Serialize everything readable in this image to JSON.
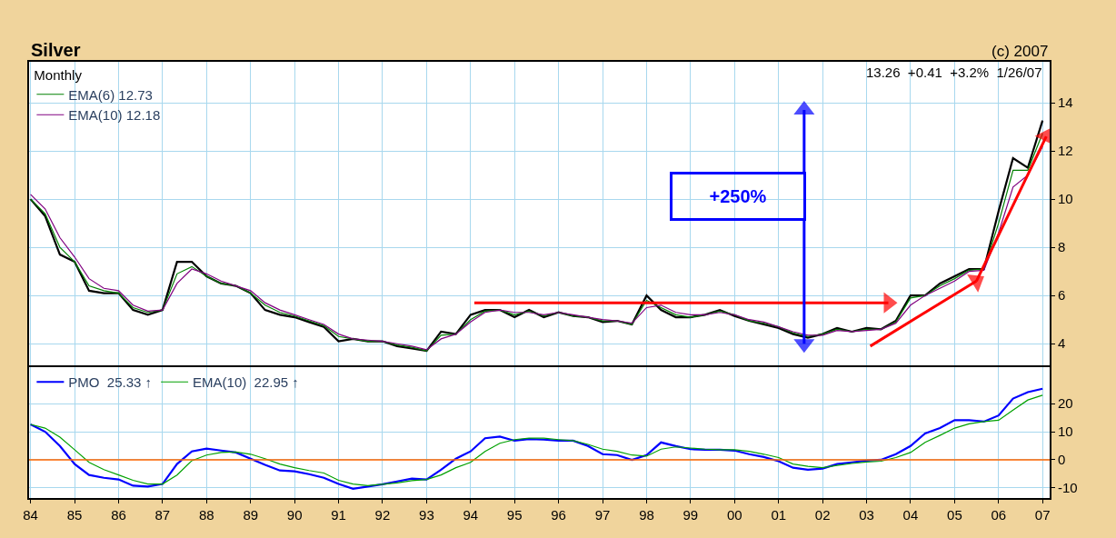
{
  "chart_data": [
    {
      "type": "line",
      "title": "Silver",
      "legend_title": "Monthly",
      "annotations": [
        "(c) 2007",
        "13.26  +0.41  +3.2%  1/26/07",
        "+250%"
      ],
      "x": [
        "1984-01",
        "1984-05",
        "1984-09",
        "1985-01",
        "1985-05",
        "1985-09",
        "1986-01",
        "1986-05",
        "1986-09",
        "1987-01",
        "1987-05",
        "1987-09",
        "1988-01",
        "1988-05",
        "1988-09",
        "1989-01",
        "1989-05",
        "1989-09",
        "1990-01",
        "1990-05",
        "1990-09",
        "1991-01",
        "1991-05",
        "1991-09",
        "1992-01",
        "1992-05",
        "1992-09",
        "1993-01",
        "1993-05",
        "1993-09",
        "1994-01",
        "1994-05",
        "1994-09",
        "1995-01",
        "1995-05",
        "1995-09",
        "1996-01",
        "1996-05",
        "1996-09",
        "1997-01",
        "1997-05",
        "1997-09",
        "1998-01",
        "1998-05",
        "1998-09",
        "1999-01",
        "1999-05",
        "1999-09",
        "2000-01",
        "2000-05",
        "2000-09",
        "2001-01",
        "2001-05",
        "2001-09",
        "2002-01",
        "2002-05",
        "2002-09",
        "2003-01",
        "2003-05",
        "2003-09",
        "2004-01",
        "2004-05",
        "2004-09",
        "2005-01",
        "2005-05",
        "2005-09",
        "2006-01",
        "2006-05",
        "2006-09",
        "2007-01"
      ],
      "series": [
        {
          "color": "#000000",
          "values": [
            10.0,
            9.3,
            7.7,
            7.4,
            6.2,
            6.1,
            6.1,
            5.4,
            5.2,
            5.4,
            7.4,
            7.4,
            6.8,
            6.5,
            6.4,
            6.1,
            5.4,
            5.2,
            5.1,
            4.9,
            4.7,
            4.1,
            4.2,
            4.1,
            4.1,
            3.9,
            3.8,
            3.7,
            4.5,
            4.4,
            5.2,
            5.4,
            5.4,
            5.1,
            5.4,
            5.1,
            5.3,
            5.15,
            5.1,
            4.9,
            4.95,
            4.8,
            6.0,
            5.4,
            5.1,
            5.1,
            5.2,
            5.4,
            5.15,
            4.95,
            4.8,
            4.65,
            4.4,
            4.25,
            4.4,
            4.65,
            4.5,
            4.65,
            4.6,
            4.95,
            6.0,
            6.0,
            6.5,
            6.8,
            7.1,
            7.1,
            9.5,
            11.7,
            11.3,
            13.26
          ]
        },
        {
          "name": "EMA(6) 12.73",
          "color": "#008000",
          "values": [
            10.0,
            9.4,
            8.0,
            7.4,
            6.4,
            6.2,
            6.1,
            5.5,
            5.3,
            5.4,
            6.9,
            7.2,
            6.8,
            6.5,
            6.4,
            6.1,
            5.6,
            5.3,
            5.15,
            4.95,
            4.75,
            4.3,
            4.2,
            4.1,
            4.1,
            3.95,
            3.85,
            3.7,
            4.35,
            4.4,
            5.0,
            5.35,
            5.4,
            5.2,
            5.35,
            5.15,
            5.3,
            5.15,
            5.1,
            4.95,
            4.95,
            4.8,
            5.8,
            5.5,
            5.2,
            5.1,
            5.2,
            5.35,
            5.2,
            4.95,
            4.85,
            4.7,
            4.45,
            4.3,
            4.4,
            4.6,
            4.5,
            4.6,
            4.6,
            4.9,
            5.9,
            6.0,
            6.4,
            6.7,
            7.05,
            7.1,
            9.0,
            11.2,
            11.2,
            12.73
          ]
        },
        {
          "name": "EMA(10) 12.18",
          "color": "#800080",
          "values": [
            10.2,
            9.6,
            8.4,
            7.6,
            6.7,
            6.3,
            6.2,
            5.6,
            5.35,
            5.4,
            6.5,
            7.1,
            6.9,
            6.6,
            6.4,
            6.2,
            5.7,
            5.4,
            5.2,
            5.0,
            4.8,
            4.4,
            4.2,
            4.15,
            4.1,
            4.0,
            3.9,
            3.75,
            4.2,
            4.4,
            4.9,
            5.3,
            5.4,
            5.3,
            5.3,
            5.2,
            5.3,
            5.2,
            5.1,
            5.0,
            4.95,
            4.85,
            5.5,
            5.6,
            5.3,
            5.2,
            5.2,
            5.3,
            5.2,
            5.0,
            4.9,
            4.7,
            4.5,
            4.35,
            4.35,
            4.55,
            4.5,
            4.55,
            4.6,
            4.85,
            5.6,
            6.0,
            6.3,
            6.6,
            7.0,
            7.05,
            8.6,
            10.5,
            11.0,
            12.18
          ]
        },
        {
          "color": "#ff0000",
          "marker": "triangle",
          "x": [
            "1994-02",
            "2003-07"
          ],
          "values": [
            5.7,
            5.7
          ]
        },
        {
          "color": "#ff0000",
          "marker": "triangle",
          "x": [
            "2003-02",
            "2005-07"
          ],
          "values": [
            3.9,
            6.6
          ]
        },
        {
          "color": "#ff0000",
          "marker": "triangle",
          "x": [
            "2005-07",
            "2007-02"
          ],
          "values": [
            6.6,
            12.6
          ]
        },
        {
          "color": "#0000ff",
          "marker": "triangle",
          "x": [
            "2001-08",
            "2001-08"
          ],
          "values": [
            11.1,
            13.7
          ]
        },
        {
          "color": "#0000ff",
          "marker": "triangle",
          "x": [
            "2001-08",
            "2001-08"
          ],
          "values": [
            9.2,
            4.0
          ]
        }
      ],
      "xlim": [
        "1983-12-20",
        "2007-03-01"
      ],
      "xticks": [
        {
          "value": "1984-01",
          "label": null
        },
        {
          "value": "1985-01",
          "label": null
        },
        {
          "value": "1986-01",
          "label": null
        },
        {
          "value": "1987-01",
          "label": null
        },
        {
          "value": "1988-01",
          "label": null
        },
        {
          "value": "1989-01",
          "label": null
        },
        {
          "value": "1990-01",
          "label": null
        },
        {
          "value": "1991-01",
          "label": null
        },
        {
          "value": "1992-01",
          "label": null
        },
        {
          "value": "1993-01",
          "label": null
        },
        {
          "value": "1994-01",
          "label": null
        },
        {
          "value": "1995-01",
          "label": null
        },
        {
          "value": "1996-01",
          "label": null
        },
        {
          "value": "1997-01",
          "label": null
        },
        {
          "value": "1998-01",
          "label": null
        },
        {
          "value": "1999-01",
          "label": null
        },
        {
          "value": "2000-01",
          "label": null
        },
        {
          "value": "2001-01",
          "label": null
        },
        {
          "value": "2002-01",
          "label": null
        },
        {
          "value": "2003-01",
          "label": null
        },
        {
          "value": "2004-01",
          "label": null
        },
        {
          "value": "2005-01",
          "label": null
        },
        {
          "value": "2006-01",
          "label": null
        },
        {
          "value": "2007-01",
          "label": null
        }
      ],
      "ylim": [
        3.1,
        15.7
      ],
      "yticks": [
        4,
        6,
        8,
        10,
        12,
        14
      ],
      "tick_labels": "y",
      "grid": true,
      "legend": "top left"
    },
    {
      "type": "line",
      "x": [
        "1984-01",
        "1984-05",
        "1984-09",
        "1985-01",
        "1985-05",
        "1985-09",
        "1986-01",
        "1986-05",
        "1986-09",
        "1987-01",
        "1987-05",
        "1987-09",
        "1988-01",
        "1988-05",
        "1988-09",
        "1989-01",
        "1989-05",
        "1989-09",
        "1990-01",
        "1990-05",
        "1990-09",
        "1991-01",
        "1991-05",
        "1991-09",
        "1992-01",
        "1992-05",
        "1992-09",
        "1993-01",
        "1993-05",
        "1993-09",
        "1994-01",
        "1994-05",
        "1994-09",
        "1995-01",
        "1995-05",
        "1995-09",
        "1996-01",
        "1996-05",
        "1996-09",
        "1997-01",
        "1997-05",
        "1997-09",
        "1998-01",
        "1998-05",
        "1998-09",
        "1999-01",
        "1999-05",
        "1999-09",
        "2000-01",
        "2000-05",
        "2000-09",
        "2001-01",
        "2001-05",
        "2001-09",
        "2002-01",
        "2002-05",
        "2002-09",
        "2003-01",
        "2003-05",
        "2003-09",
        "2004-01",
        "2004-05",
        "2004-09",
        "2005-01",
        "2005-05",
        "2005-09",
        "2006-01",
        "2006-05",
        "2006-09",
        "2007-01"
      ],
      "series": [
        {
          "name": "PMO  25.33 ↑",
          "color": "#0000ff",
          "values": [
            12.6,
            10,
            4.9,
            -1.5,
            -5.4,
            -6.4,
            -7,
            -9.2,
            -9.5,
            -8.6,
            -1.5,
            3,
            4,
            3.3,
            2.6,
            0.4,
            -1.8,
            -3.8,
            -4.1,
            -5.1,
            -6.4,
            -8.6,
            -10.3,
            -9.5,
            -8.7,
            -7.7,
            -6.7,
            -7,
            -3.5,
            0.4,
            3,
            7.7,
            8.3,
            6.8,
            7.4,
            7.2,
            6.8,
            6.8,
            4.9,
            2,
            1.7,
            0,
            1.7,
            6.2,
            4.9,
            3.8,
            3.6,
            3.6,
            3.3,
            2,
            1,
            -0.5,
            -2.8,
            -3.5,
            -3.1,
            -1.5,
            -0.9,
            -0.3,
            0,
            2,
            4.9,
            9.4,
            11.3,
            14.1,
            14.1,
            13.6,
            15.8,
            21.8,
            24.1,
            25.3
          ]
        },
        {
          "name": "EMA(10)  22.95 ↑",
          "color": "#00a000",
          "values": [
            12.6,
            11.3,
            8.1,
            3.6,
            -0.9,
            -3.5,
            -5.4,
            -7.3,
            -8.6,
            -8.6,
            -5.4,
            -0.3,
            1.7,
            2.6,
            2.8,
            2,
            0.4,
            -1.5,
            -2.8,
            -3.8,
            -4.7,
            -7.3,
            -8.6,
            -9.2,
            -8.7,
            -8.2,
            -7.4,
            -7,
            -5.4,
            -2.8,
            -0.9,
            3,
            5.9,
            7.2,
            7.7,
            7.7,
            7.2,
            6.8,
            5.5,
            3.8,
            3,
            1.7,
            1.3,
            3.8,
            4.6,
            4.2,
            3.8,
            3.6,
            3.6,
            3,
            2,
            0.8,
            -1.5,
            -2.3,
            -2.8,
            -2,
            -1.3,
            -0.8,
            -0.5,
            0.8,
            2.6,
            6.2,
            8.7,
            11.3,
            12.8,
            13.6,
            14.1,
            17.7,
            21.3,
            23.0
          ]
        }
      ],
      "ref_lines": [
        {
          "axis": "y",
          "value": 0,
          "color": "#ff6600"
        }
      ],
      "xlim": [
        "1983-12-20",
        "2007-03-01"
      ],
      "xticks": [
        {
          "value": "1984-01",
          "label": "84"
        },
        {
          "value": "1985-01",
          "label": "85"
        },
        {
          "value": "1986-01",
          "label": "86"
        },
        {
          "value": "1987-01",
          "label": "87"
        },
        {
          "value": "1988-01",
          "label": "88"
        },
        {
          "value": "1989-01",
          "label": "89"
        },
        {
          "value": "1990-01",
          "label": "90"
        },
        {
          "value": "1991-01",
          "label": "91"
        },
        {
          "value": "1992-01",
          "label": "92"
        },
        {
          "value": "1993-01",
          "label": "93"
        },
        {
          "value": "1994-01",
          "label": "94"
        },
        {
          "value": "1995-01",
          "label": "95"
        },
        {
          "value": "1996-01",
          "label": "96"
        },
        {
          "value": "1997-01",
          "label": "97"
        },
        {
          "value": "1998-01",
          "label": "98"
        },
        {
          "value": "1999-01",
          "label": "99"
        },
        {
          "value": "2000-01",
          "label": "00"
        },
        {
          "value": "2001-01",
          "label": "01"
        },
        {
          "value": "2002-01",
          "label": "02"
        },
        {
          "value": "2003-01",
          "label": "03"
        },
        {
          "value": "2004-01",
          "label": "04"
        },
        {
          "value": "2005-01",
          "label": "05"
        },
        {
          "value": "2006-01",
          "label": "06"
        },
        {
          "value": "2007-01",
          "label": "07"
        }
      ],
      "ylim": [
        -13.6,
        33
      ],
      "yticks": [
        -10,
        0,
        10,
        20
      ],
      "grid": true,
      "legend": "top left"
    }
  ]
}
